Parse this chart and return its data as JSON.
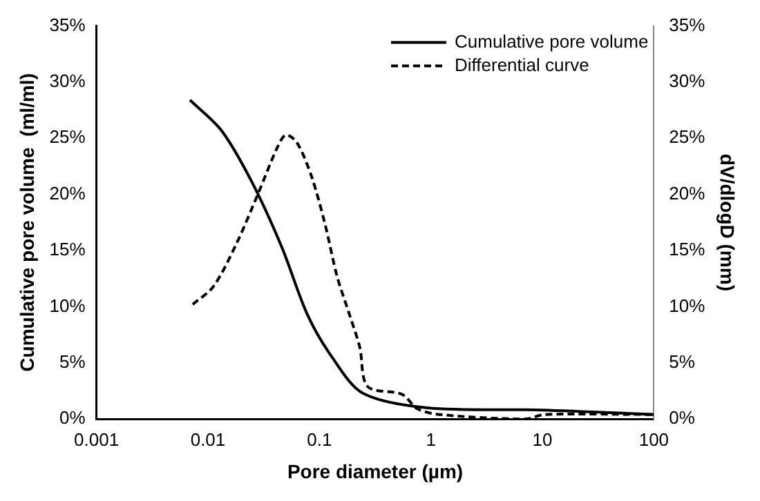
{
  "chart_data": {
    "type": "line",
    "xlabel": "Pore diameter (µm)",
    "ylabel": "Cumulative pore volume  (ml/ml)",
    "y2label": "dV/dlogD (mm)",
    "log": "x",
    "xlim": [
      0.001,
      100
    ],
    "xticks": [
      0.001,
      0.01,
      0.1,
      1,
      10,
      100
    ],
    "ylim": [
      0,
      35
    ],
    "yticks": [
      {
        "value": 0,
        "label": "0%"
      },
      {
        "value": 5,
        "label": "5%"
      },
      {
        "value": 10,
        "label": "10%"
      },
      {
        "value": 15,
        "label": "15%"
      },
      {
        "value": 20,
        "label": "20%"
      },
      {
        "value": 25,
        "label": "25%"
      },
      {
        "value": 30,
        "label": "30%"
      },
      {
        "value": 35,
        "label": "35%"
      }
    ],
    "y2lim": [
      0,
      35
    ],
    "y2ticks": [
      {
        "value": 0,
        "label": "0%"
      },
      {
        "value": 5,
        "label": "5%"
      },
      {
        "value": 10,
        "label": "10%"
      },
      {
        "value": 15,
        "label": "15%"
      },
      {
        "value": 20,
        "label": "20%"
      },
      {
        "value": 25,
        "label": "25%"
      },
      {
        "value": 30,
        "label": "30%"
      },
      {
        "value": 35,
        "label": "35%"
      }
    ],
    "legend": "top right",
    "grid": false,
    "series": [
      {
        "name": "Cumulative pore volume",
        "color": "#000000",
        "line_style": "solid",
        "x": [
          0.0069,
          0.0132,
          0.0245,
          0.046,
          0.078,
          0.13,
          0.245,
          0.93,
          10,
          100
        ],
        "values": [
          28.4,
          25.7,
          21.2,
          15.3,
          9.3,
          5.5,
          2.3,
          1.0,
          0.8,
          0.4
        ]
      },
      {
        "name": "Differential curve",
        "color": "#000000",
        "line_style": "dashed",
        "axis": "y2",
        "x": [
          0.0073,
          0.0112,
          0.018,
          0.028,
          0.042,
          0.05,
          0.063,
          0.085,
          0.112,
          0.144,
          0.186,
          0.23,
          0.27,
          0.55,
          0.76,
          1.2,
          7,
          10.5,
          100
        ],
        "values": [
          10.2,
          11.8,
          15.6,
          20,
          24.2,
          25.3,
          24.6,
          21.6,
          17.4,
          12.7,
          9.3,
          6.4,
          2.9,
          2.2,
          0.9,
          0.4,
          0,
          0.4,
          0.4
        ]
      }
    ]
  }
}
